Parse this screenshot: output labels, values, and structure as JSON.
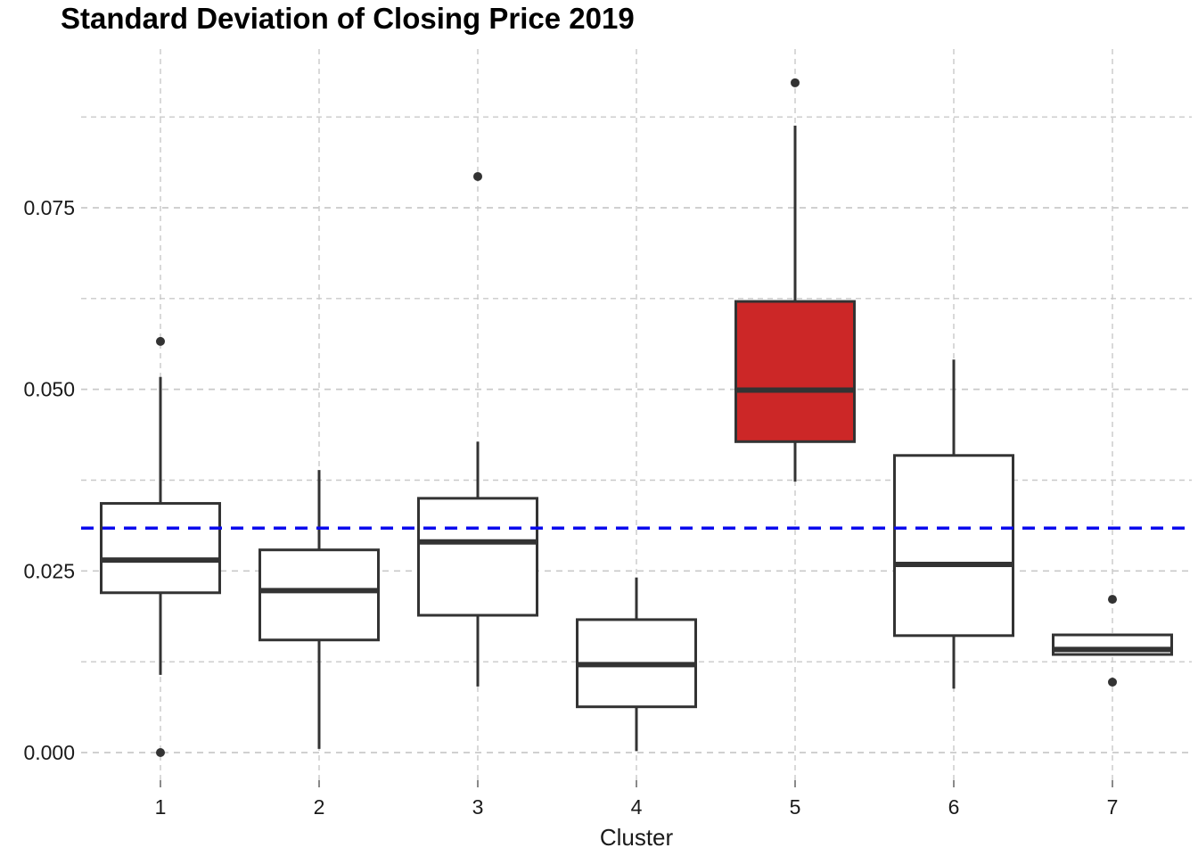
{
  "page": {
    "background": "#FFFFFF"
  },
  "chart_data": {
    "type": "boxplot",
    "title": "Standard Deviation of Closing Price 2019",
    "xlabel": "Cluster",
    "ylabel": "",
    "categories": [
      "1",
      "2",
      "3",
      "4",
      "5",
      "6",
      "7"
    ],
    "ylim": [
      0.0,
      0.0968
    ],
    "yticks": [
      0.0,
      0.025,
      0.05,
      0.075
    ],
    "ytick_labels": [
      "0.000",
      "0.025",
      "0.050",
      "0.075"
    ],
    "minor_yticks": [
      0.0125,
      0.0375,
      0.0625,
      0.0875
    ],
    "grid": "dashed gray horizontal major+minor lines; dashed gray vertical line at each cluster",
    "legend": "none",
    "reference_line": {
      "value": 0.0309,
      "style": "dashed",
      "color": "#0B0BEE"
    },
    "boxes": [
      {
        "cluster": "1",
        "whisker_low": 0.0107,
        "q1": 0.022,
        "median": 0.0265,
        "q3": 0.0343,
        "whisker_high": 0.0517,
        "outliers": [
          0.0566,
          0.0
        ],
        "fill": "#FFFFFF"
      },
      {
        "cluster": "2",
        "whisker_low": 0.0005,
        "q1": 0.0155,
        "median": 0.0223,
        "q3": 0.0279,
        "whisker_high": 0.0389,
        "outliers": [],
        "fill": "#FFFFFF"
      },
      {
        "cluster": "3",
        "whisker_low": 0.0091,
        "q1": 0.0189,
        "median": 0.029,
        "q3": 0.035,
        "whisker_high": 0.0428,
        "outliers": [
          0.0793
        ],
        "fill": "#FFFFFF"
      },
      {
        "cluster": "4",
        "whisker_low": 0.0002,
        "q1": 0.0063,
        "median": 0.0121,
        "q3": 0.0183,
        "whisker_high": 0.0241,
        "outliers": [],
        "fill": "#FFFFFF"
      },
      {
        "cluster": "5",
        "whisker_low": 0.0373,
        "q1": 0.0428,
        "median": 0.0499,
        "q3": 0.0621,
        "whisker_high": 0.0863,
        "outliers": [
          0.0922
        ],
        "fill": "#CC2727"
      },
      {
        "cluster": "6",
        "whisker_low": 0.0088,
        "q1": 0.0161,
        "median": 0.0259,
        "q3": 0.0409,
        "whisker_high": 0.0541,
        "outliers": [],
        "fill": "#FFFFFF"
      },
      {
        "cluster": "7",
        "whisker_low": 0.0135,
        "q1": 0.0135,
        "median": 0.0142,
        "q3": 0.0162,
        "whisker_high": 0.0162,
        "outliers": [
          0.0211,
          0.0097
        ],
        "fill": "#FFFFFF"
      }
    ],
    "colors": {
      "box_border": "#333333",
      "median": "#333333",
      "whisker": "#333333",
      "outlier": "#333333",
      "grid": "#C9C9C9",
      "tick": "#8A8A8A",
      "text": "#1A1A1A",
      "highlight_fill": "#CC2727",
      "reference": "#0B0BEE"
    }
  }
}
